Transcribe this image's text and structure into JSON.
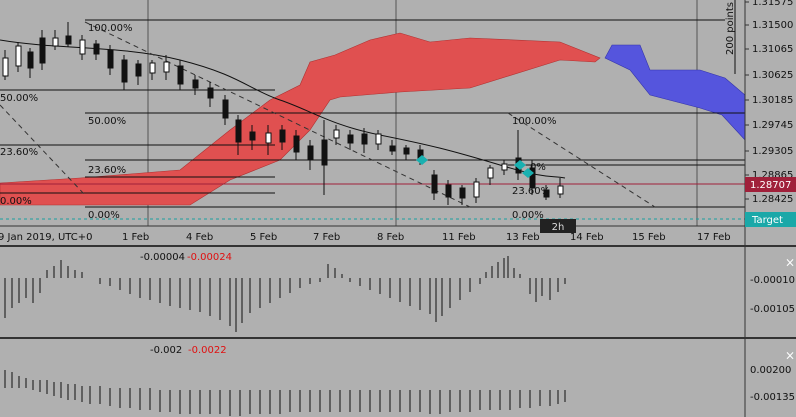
{
  "price_axis": {
    "labels": [
      "1.31575",
      "1.31500",
      "1.31065",
      "1.30625",
      "1.30185",
      "1.29745",
      "1.29305",
      "1.28865",
      "1.28425"
    ],
    "current_price": "1.28707",
    "target": "Target"
  },
  "range_label": "200 points",
  "fibo_left": {
    "levels": [
      "100.00%",
      "50.00%",
      "50.00%",
      "23.60%",
      "23.60%",
      "0.00%",
      "0.00%"
    ]
  },
  "fibo_right": {
    "levels": [
      "100.00%",
      "0%",
      "23.60%",
      "0.00%"
    ]
  },
  "time_axis": [
    "9 Jan 2019, UTC+0",
    "1 Feb",
    "4 Feb",
    "5 Feb",
    "7 Feb",
    "8 Feb",
    "11 Feb",
    "13 Feb",
    "14 Feb",
    "15 Feb",
    "17 Feb"
  ],
  "timeframe": "2h",
  "indicators": [
    {
      "values": [
        "-0.00004",
        "-0.00024"
      ],
      "axis": [
        "-0.00010",
        "-0.00105"
      ],
      "close": "×"
    },
    {
      "values": [
        "-0.002",
        "-0.0022"
      ],
      "axis": [
        "0.00200",
        "-0.00135"
      ],
      "close": "×"
    }
  ]
}
